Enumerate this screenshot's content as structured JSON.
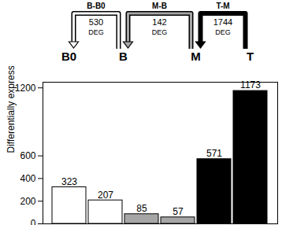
{
  "chart_data": {
    "type": "bar",
    "ylabel": "Differentially expressed genes",
    "categories": [
      "B0",
      "B",
      "M",
      "T"
    ],
    "series": [
      {
        "name": "B-B0",
        "color": "#ffffff",
        "values": [
          323,
          207,
          null,
          null
        ]
      },
      {
        "name": "M-B",
        "color": "#a6a6a6",
        "values": [
          null,
          85,
          57,
          null
        ]
      },
      {
        "name": "T-M",
        "color": "#000000",
        "values": [
          null,
          null,
          571,
          1173
        ]
      }
    ],
    "ylim": [
      0,
      1250
    ],
    "yticks": [
      0,
      200,
      400,
      600,
      1200
    ],
    "data_labels": true,
    "tick_labels": "y",
    "annotations": [
      {
        "from": "B",
        "to": "B0",
        "text": "B-B0",
        "value": 530,
        "unit": "DEG"
      },
      {
        "from": "M",
        "to": "B",
        "text": "M-B",
        "value": 142,
        "unit": "DEG"
      },
      {
        "from": "T",
        "to": "M",
        "text": "T-M",
        "value": 1744,
        "unit": "DEG"
      }
    ]
  }
}
